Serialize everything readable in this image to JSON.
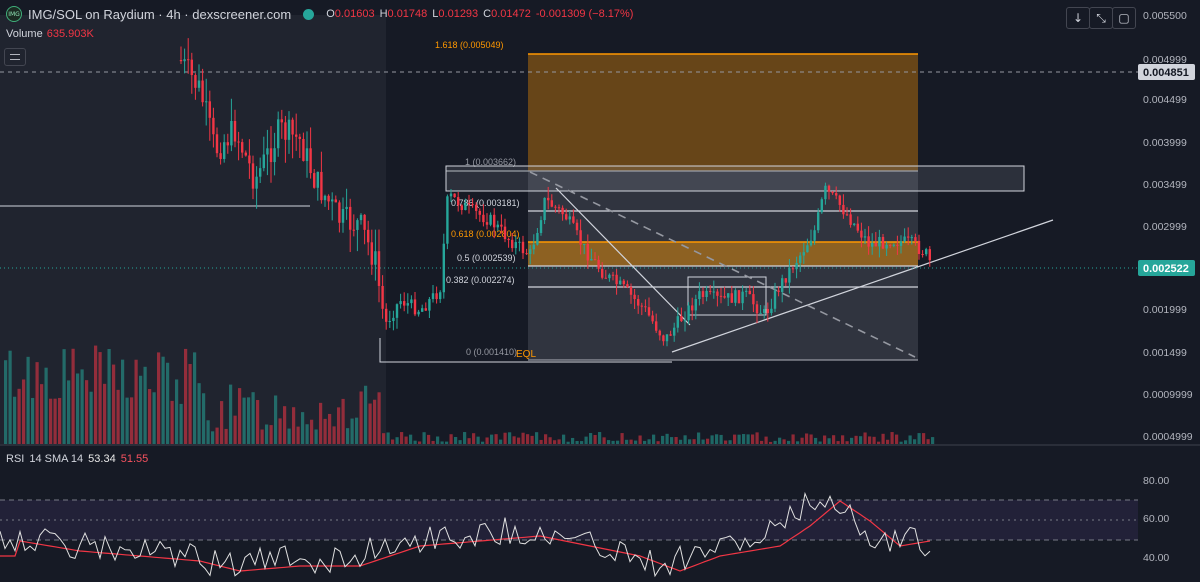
{
  "header": {
    "logo_text": "IMG",
    "title": "IMG/SOL on Raydium · 4h · dexscreener.com",
    "ohlc": [
      {
        "key": "O",
        "value": "0.01603"
      },
      {
        "key": "H",
        "value": "0.01748"
      },
      {
        "key": "L",
        "value": "0.01293"
      },
      {
        "key": "C",
        "value": "0.01472"
      },
      {
        "key": "",
        "value": "-0.001309 (−8.17%)"
      }
    ],
    "colors": {
      "up": "#26a69a",
      "down": "#f23645"
    }
  },
  "volume": {
    "label": "Volume",
    "value": "635.903K"
  },
  "toolbar": {
    "down_icon": "arrow-down-icon",
    "fullscreen_icon": "fullscreen-icon",
    "screenshot_icon": "camera-icon"
  },
  "price_axis": {
    "ticks": [
      "0.005500",
      "0.004999",
      "0.004499",
      "0.003999",
      "0.003499",
      "0.002999",
      "0.001999",
      "0.001499",
      "0.0009999",
      "0.0004999"
    ],
    "crosshair_label": "0.004851",
    "current_label": "0.002522"
  },
  "fib": {
    "levels": [
      {
        "label": "1.618 (0.005049)",
        "color": "#ff9800"
      },
      {
        "label": "1 (0.003662)",
        "color": "#9598a1"
      },
      {
        "label": "0.786 (0.003181)",
        "color": "#d1d4dc"
      },
      {
        "label": "0.618 (0.002804)",
        "color": "#ff9800"
      },
      {
        "label": "0.5 (0.002539)",
        "color": "#d1d4dc"
      },
      {
        "label": "0.382 (0.002274)",
        "color": "#d1d4dc"
      },
      {
        "label": "0 (0.001410)",
        "color": "#9598a1"
      }
    ],
    "eql_label": "EQL"
  },
  "rsi": {
    "label": "RSI",
    "params": "14 SMA 14",
    "value": "53.34",
    "sma_value": "51.55",
    "ticks": [
      "80.00",
      "60.00",
      "40.00"
    ],
    "line_color": "#e0e0e0",
    "sma_color": "#f23645",
    "band_color": "#7e57c2"
  }
}
